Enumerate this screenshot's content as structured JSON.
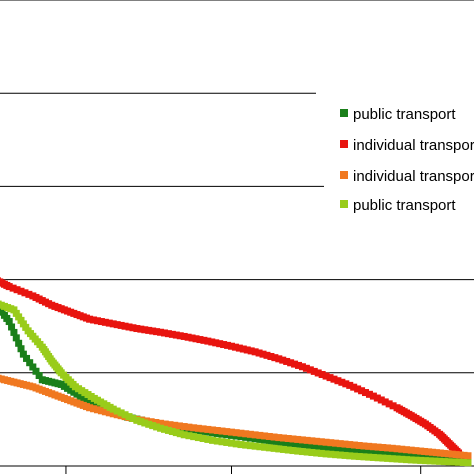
{
  "chart_data": {
    "type": "scatter",
    "title": "",
    "xlabel": "",
    "ylabel": "",
    "grid": true,
    "legend_placement": "right",
    "xlim": [
      0,
      100
    ],
    "ylim": [
      0,
      100
    ],
    "yticks": [
      0,
      20,
      40,
      60,
      80,
      100
    ],
    "xticks": [
      0,
      15,
      50,
      90
    ],
    "series": [
      {
        "name": "public transport",
        "color": "#1a7f1a",
        "x": [
          0,
          3,
          6,
          10,
          14,
          18,
          22,
          28,
          34,
          40,
          46,
          52,
          58,
          64,
          70,
          76,
          82,
          88,
          94,
          100
        ],
        "y": [
          35,
          31,
          24,
          18.5,
          17.5,
          15,
          12.5,
          10.5,
          9.2,
          8.1,
          7.1,
          6.3,
          5.4,
          4.7,
          4.0,
          3.3,
          2.6,
          2.1,
          1.7,
          1.3
        ]
      },
      {
        "name": "individual transport",
        "color": "#e8140f",
        "x": [
          0,
          3,
          8,
          12,
          16,
          20,
          25,
          30,
          35,
          40,
          45,
          50,
          55,
          60,
          65,
          70,
          75,
          80,
          85,
          88,
          91,
          94,
          96,
          98
        ],
        "y": [
          40,
          38.5,
          36.5,
          34.5,
          33,
          31.5,
          30.5,
          29.5,
          28.7,
          27.8,
          26.8,
          25.7,
          24.5,
          23,
          21.3,
          19.3,
          17.3,
          15,
          12.5,
          10.8,
          9,
          6.8,
          4.8,
          2.8
        ]
      },
      {
        "name": "individual transport",
        "color": "#f07820",
        "x": [
          0,
          4,
          8,
          12,
          16,
          20,
          25,
          30,
          36,
          42,
          48,
          54,
          60,
          66,
          72,
          78,
          84,
          90,
          95,
          100
        ],
        "y": [
          19,
          18,
          17,
          15.5,
          14,
          12.5,
          11.2,
          10,
          9,
          8.2,
          7.5,
          6.8,
          6.1,
          5.5,
          4.9,
          4.3,
          3.8,
          3.2,
          2.7,
          2.2
        ]
      },
      {
        "name": "public transport",
        "color": "#99cc1a",
        "x": [
          0,
          4,
          7,
          10,
          12,
          14,
          17,
          21,
          25,
          30,
          35,
          40,
          46,
          52,
          58,
          64,
          70,
          76,
          82,
          88,
          94,
          100
        ],
        "y": [
          35,
          33.5,
          29,
          25.5,
          22.5,
          20,
          17,
          14.5,
          12.2,
          9.8,
          8.1,
          6.7,
          5.5,
          4.6,
          3.9,
          3.2,
          2.6,
          2.1,
          1.7,
          1.3,
          1.0,
          0.7
        ]
      }
    ]
  }
}
